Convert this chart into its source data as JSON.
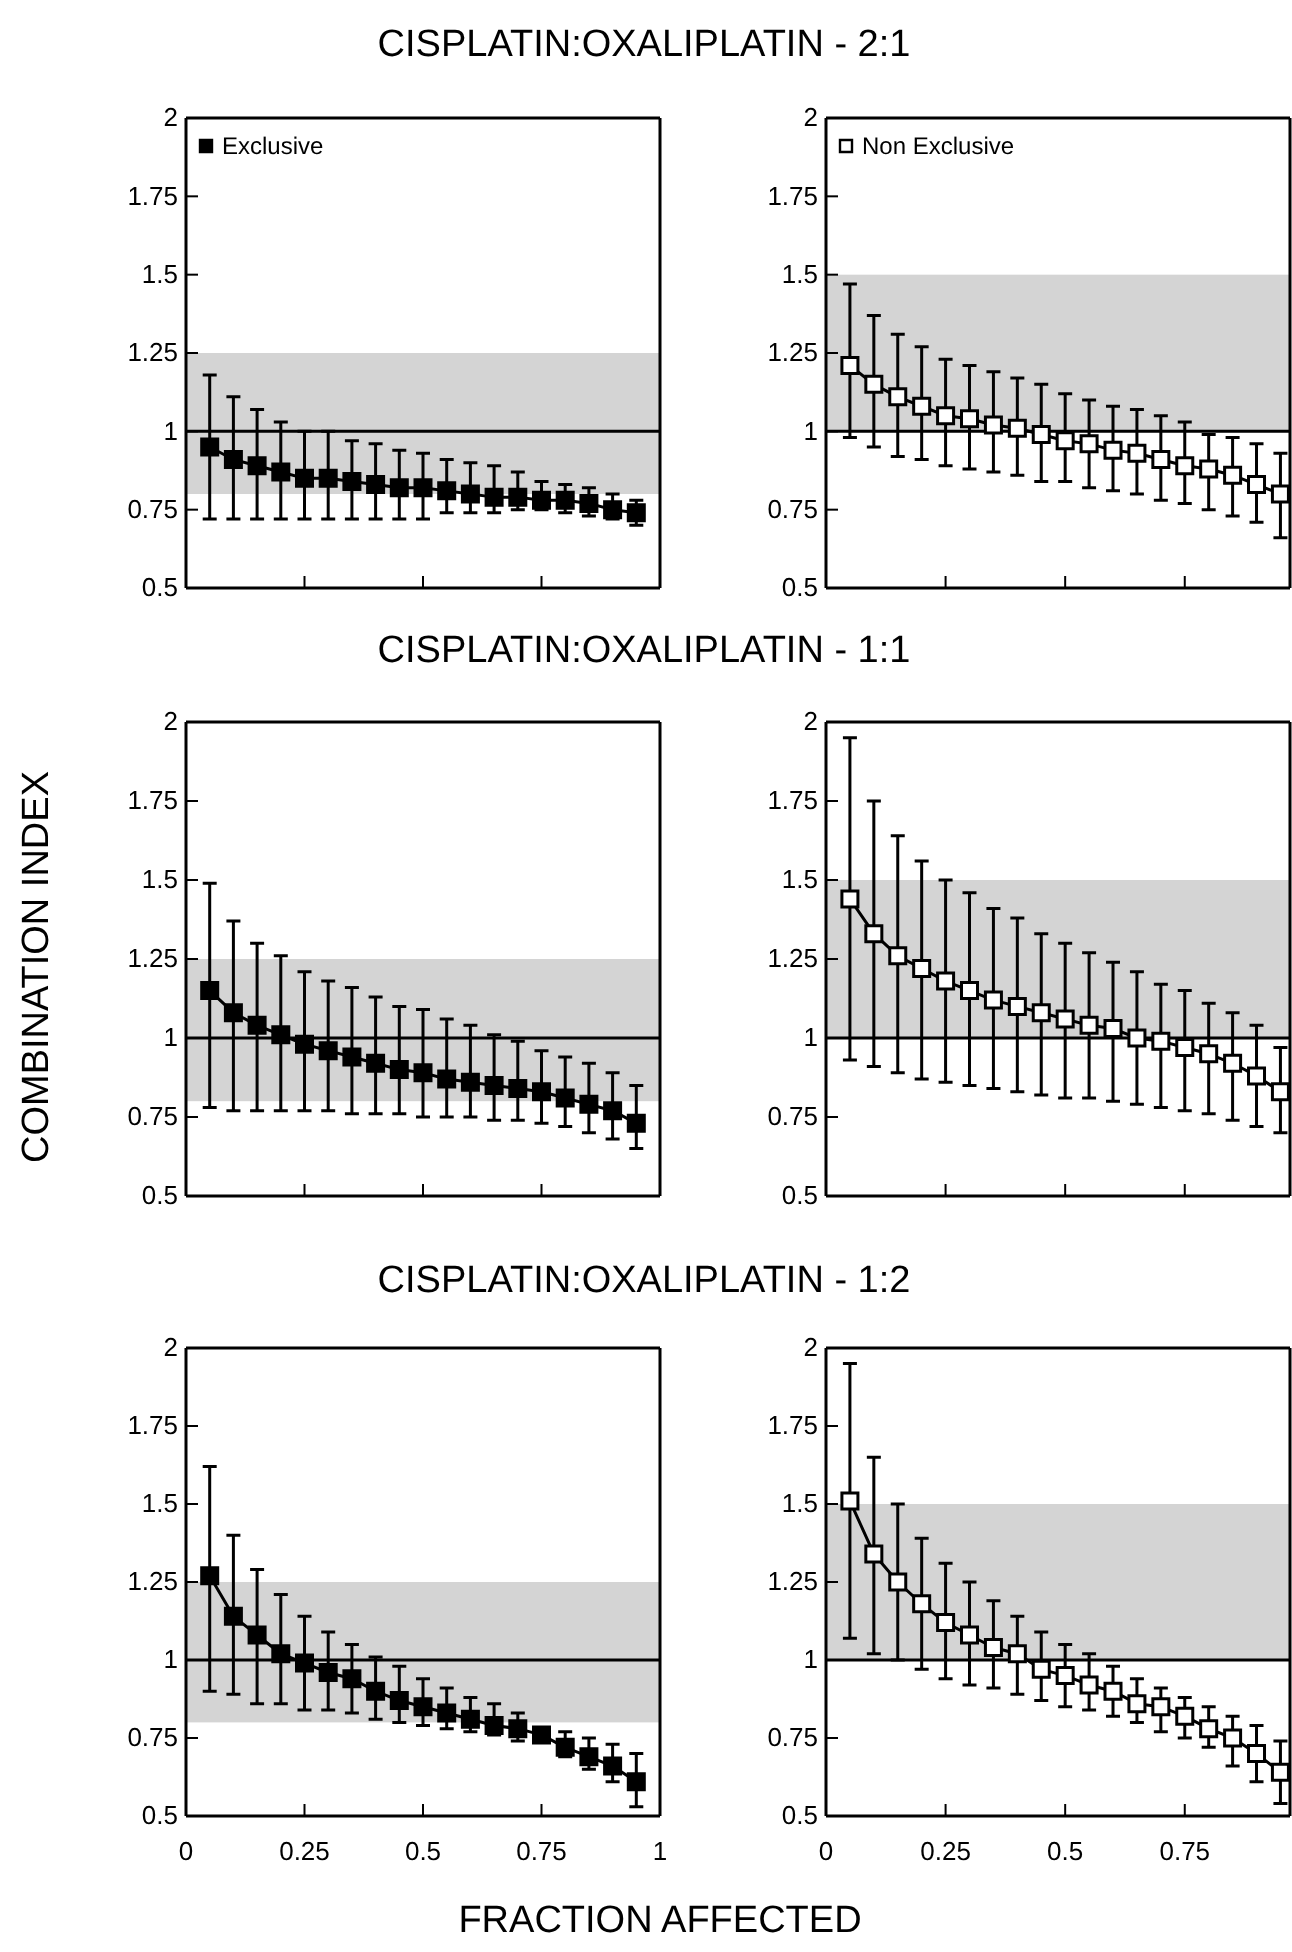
{
  "chart_data": [
    {
      "type": "line",
      "title": "CISPLATIN:OXALIPLATIN - 2:1",
      "x": [
        0.05,
        0.1,
        0.15,
        0.2,
        0.25,
        0.3,
        0.35,
        0.4,
        0.45,
        0.5,
        0.55,
        0.6,
        0.65,
        0.7,
        0.75,
        0.8,
        0.85,
        0.9,
        0.95
      ],
      "xlim": [
        0,
        1
      ],
      "xticks": [
        0,
        0.25,
        0.5,
        0.75,
        1
      ],
      "ylim": [
        0.5,
        2
      ],
      "yticks": [
        0.5,
        0.75,
        1,
        1.25,
        1.5,
        1.75,
        2
      ],
      "tick_labels": "y",
      "marker": "square",
      "legend": "top left",
      "series": [
        {
          "name": "Exclusive",
          "color": "#000000",
          "values": [
            0.95,
            0.91,
            0.89,
            0.87,
            0.85,
            0.85,
            0.84,
            0.83,
            0.82,
            0.82,
            0.81,
            0.8,
            0.79,
            0.79,
            0.78,
            0.78,
            0.77,
            0.75,
            0.74
          ],
          "errors": [
            [
              0.72,
              1.18
            ],
            [
              0.72,
              1.11
            ],
            [
              0.72,
              1.07
            ],
            [
              0.72,
              1.03
            ],
            [
              0.72,
              1.0
            ],
            [
              0.72,
              1.0
            ],
            [
              0.72,
              0.97
            ],
            [
              0.72,
              0.96
            ],
            [
              0.72,
              0.94
            ],
            [
              0.72,
              0.93
            ],
            [
              0.74,
              0.91
            ],
            [
              0.74,
              0.9
            ],
            [
              0.74,
              0.89
            ],
            [
              0.75,
              0.87
            ],
            [
              0.75,
              0.84
            ],
            [
              0.74,
              0.83
            ],
            [
              0.73,
              0.82
            ],
            [
              0.72,
              0.8
            ],
            [
              0.7,
              0.78
            ]
          ]
        }
      ],
      "bands": [
        {
          "axis": "y",
          "from": 0.8,
          "to": 1.25,
          "color": "#d4d4d4"
        }
      ],
      "ref_lines": [
        {
          "axis": "y",
          "value": 1,
          "color": "#000000"
        }
      ]
    },
    {
      "type": "line",
      "x": [
        0.05,
        0.1,
        0.15,
        0.2,
        0.25,
        0.3,
        0.35,
        0.4,
        0.45,
        0.5,
        0.55,
        0.6,
        0.65,
        0.7,
        0.75,
        0.8,
        0.85,
        0.9,
        0.95
      ],
      "xlim": [
        0,
        0.97
      ],
      "xticks": [
        0,
        0.25,
        0.5,
        0.75
      ],
      "ylim": [
        0.5,
        2
      ],
      "yticks": [
        0.5,
        0.75,
        1,
        1.25,
        1.5,
        1.75,
        2
      ],
      "tick_labels": "y",
      "marker": "square",
      "legend": "top left",
      "series": [
        {
          "name": "Non Exclusive",
          "color": "#000000",
          "values": [
            1.21,
            1.15,
            1.11,
            1.08,
            1.05,
            1.04,
            1.02,
            1.01,
            0.99,
            0.97,
            0.96,
            0.94,
            0.93,
            0.91,
            0.89,
            0.88,
            0.86,
            0.83,
            0.8
          ],
          "errors": [
            [
              0.98,
              1.47
            ],
            [
              0.95,
              1.37
            ],
            [
              0.92,
              1.31
            ],
            [
              0.91,
              1.27
            ],
            [
              0.89,
              1.23
            ],
            [
              0.88,
              1.21
            ],
            [
              0.87,
              1.19
            ],
            [
              0.86,
              1.17
            ],
            [
              0.84,
              1.15
            ],
            [
              0.84,
              1.12
            ],
            [
              0.82,
              1.1
            ],
            [
              0.81,
              1.08
            ],
            [
              0.8,
              1.07
            ],
            [
              0.78,
              1.05
            ],
            [
              0.77,
              1.03
            ],
            [
              0.75,
              0.99
            ],
            [
              0.73,
              0.98
            ],
            [
              0.71,
              0.96
            ],
            [
              0.66,
              0.93
            ]
          ]
        }
      ],
      "bands": [
        {
          "axis": "y",
          "from": 1,
          "to": 1.5,
          "color": "#d4d4d4"
        }
      ],
      "ref_lines": [
        {
          "axis": "y",
          "value": 1,
          "color": "#000000"
        }
      ]
    },
    {
      "type": "line",
      "title": "CISPLATIN:OXALIPLATIN - 1:1",
      "ylabel": "COMBINATION INDEX",
      "x": [
        0.05,
        0.1,
        0.15,
        0.2,
        0.25,
        0.3,
        0.35,
        0.4,
        0.45,
        0.5,
        0.55,
        0.6,
        0.65,
        0.7,
        0.75,
        0.8,
        0.85,
        0.9,
        0.95
      ],
      "xlim": [
        0,
        1
      ],
      "xticks": [
        0,
        0.25,
        0.5,
        0.75,
        1
      ],
      "ylim": [
        0.5,
        2
      ],
      "yticks": [
        0.5,
        0.75,
        1,
        1.25,
        1.5,
        1.75,
        2
      ],
      "tick_labels": "y",
      "marker": "square",
      "series": [
        {
          "color": "#000000",
          "values": [
            1.15,
            1.08,
            1.04,
            1.01,
            0.98,
            0.96,
            0.94,
            0.92,
            0.9,
            0.89,
            0.87,
            0.86,
            0.85,
            0.84,
            0.83,
            0.81,
            0.79,
            0.77,
            0.73
          ],
          "errors": [
            [
              0.78,
              1.49
            ],
            [
              0.77,
              1.37
            ],
            [
              0.77,
              1.3
            ],
            [
              0.77,
              1.26
            ],
            [
              0.77,
              1.21
            ],
            [
              0.77,
              1.18
            ],
            [
              0.76,
              1.16
            ],
            [
              0.76,
              1.13
            ],
            [
              0.76,
              1.1
            ],
            [
              0.75,
              1.09
            ],
            [
              0.75,
              1.06
            ],
            [
              0.75,
              1.04
            ],
            [
              0.74,
              1.01
            ],
            [
              0.74,
              0.99
            ],
            [
              0.73,
              0.96
            ],
            [
              0.72,
              0.94
            ],
            [
              0.7,
              0.92
            ],
            [
              0.68,
              0.89
            ],
            [
              0.65,
              0.85
            ]
          ]
        }
      ],
      "bands": [
        {
          "axis": "y",
          "from": 0.8,
          "to": 1.25,
          "color": "#d4d4d4"
        }
      ],
      "ref_lines": [
        {
          "axis": "y",
          "value": 1,
          "color": "#000000"
        }
      ]
    },
    {
      "type": "line",
      "x": [
        0.05,
        0.1,
        0.15,
        0.2,
        0.25,
        0.3,
        0.35,
        0.4,
        0.45,
        0.5,
        0.55,
        0.6,
        0.65,
        0.7,
        0.75,
        0.8,
        0.85,
        0.9,
        0.95
      ],
      "xlim": [
        0,
        0.97
      ],
      "xticks": [
        0,
        0.25,
        0.5,
        0.75
      ],
      "ylim": [
        0.5,
        2
      ],
      "yticks": [
        0.5,
        0.75,
        1,
        1.25,
        1.5,
        1.75,
        2
      ],
      "tick_labels": "y",
      "marker": "square",
      "series": [
        {
          "color": "#000000",
          "values": [
            1.44,
            1.33,
            1.26,
            1.22,
            1.18,
            1.15,
            1.12,
            1.1,
            1.08,
            1.06,
            1.04,
            1.03,
            1.0,
            0.99,
            0.97,
            0.95,
            0.92,
            0.88,
            0.83
          ],
          "errors": [
            [
              0.93,
              1.95
            ],
            [
              0.91,
              1.75
            ],
            [
              0.89,
              1.64
            ],
            [
              0.87,
              1.56
            ],
            [
              0.86,
              1.5
            ],
            [
              0.85,
              1.46
            ],
            [
              0.84,
              1.41
            ],
            [
              0.83,
              1.38
            ],
            [
              0.82,
              1.33
            ],
            [
              0.81,
              1.3
            ],
            [
              0.81,
              1.27
            ],
            [
              0.8,
              1.24
            ],
            [
              0.79,
              1.21
            ],
            [
              0.78,
              1.17
            ],
            [
              0.77,
              1.15
            ],
            [
              0.76,
              1.11
            ],
            [
              0.74,
              1.08
            ],
            [
              0.72,
              1.04
            ],
            [
              0.7,
              0.97
            ]
          ]
        }
      ],
      "bands": [
        {
          "axis": "y",
          "from": 1,
          "to": 1.5,
          "color": "#d4d4d4"
        }
      ],
      "ref_lines": [
        {
          "axis": "y",
          "value": 1,
          "color": "#000000"
        }
      ]
    },
    {
      "type": "line",
      "title": "CISPLATIN:OXALIPLATIN - 1:2",
      "xlabel": "FRACTION AFFECTED",
      "x": [
        0.05,
        0.1,
        0.15,
        0.2,
        0.25,
        0.3,
        0.35,
        0.4,
        0.45,
        0.5,
        0.55,
        0.6,
        0.65,
        0.7,
        0.75,
        0.8,
        0.85,
        0.9,
        0.95
      ],
      "xlim": [
        0,
        1
      ],
      "xticks": [
        0,
        0.25,
        0.5,
        0.75,
        1
      ],
      "ylim": [
        0.5,
        2
      ],
      "yticks": [
        0.5,
        0.75,
        1,
        1.25,
        1.5,
        1.75,
        2
      ],
      "marker": "square",
      "series": [
        {
          "color": "#000000",
          "values": [
            1.27,
            1.14,
            1.08,
            1.02,
            0.99,
            0.96,
            0.94,
            0.9,
            0.87,
            0.85,
            0.83,
            0.81,
            0.79,
            0.78,
            0.76,
            0.72,
            0.69,
            0.66,
            0.61
          ],
          "errors": [
            [
              0.9,
              1.62
            ],
            [
              0.89,
              1.4
            ],
            [
              0.86,
              1.29
            ],
            [
              0.86,
              1.21
            ],
            [
              0.84,
              1.14
            ],
            [
              0.84,
              1.09
            ],
            [
              0.83,
              1.05
            ],
            [
              0.81,
              1.01
            ],
            [
              0.8,
              0.98
            ],
            [
              0.79,
              0.94
            ],
            [
              0.78,
              0.91
            ],
            [
              0.77,
              0.88
            ],
            [
              0.76,
              0.86
            ],
            [
              0.74,
              0.83
            ],
            null,
            [
              0.69,
              0.77
            ],
            [
              0.65,
              0.75
            ],
            [
              0.61,
              0.73
            ],
            [
              0.53,
              0.7
            ]
          ]
        }
      ],
      "bands": [
        {
          "axis": "y",
          "from": 0.8,
          "to": 1.25,
          "color": "#d4d4d4"
        }
      ],
      "ref_lines": [
        {
          "axis": "y",
          "value": 1,
          "color": "#000000"
        }
      ]
    },
    {
      "type": "line",
      "x": [
        0.05,
        0.1,
        0.15,
        0.2,
        0.25,
        0.3,
        0.35,
        0.4,
        0.45,
        0.5,
        0.55,
        0.6,
        0.65,
        0.7,
        0.75,
        0.8,
        0.85,
        0.9,
        0.95
      ],
      "xlim": [
        0,
        0.97
      ],
      "xticks": [
        0,
        0.25,
        0.5,
        0.75
      ],
      "ylim": [
        0.5,
        2
      ],
      "yticks": [
        0.5,
        0.75,
        1,
        1.25,
        1.5,
        1.75,
        2
      ],
      "marker": "square",
      "series": [
        {
          "color": "#000000",
          "values": [
            1.51,
            1.34,
            1.25,
            1.18,
            1.12,
            1.08,
            1.04,
            1.02,
            0.97,
            0.95,
            0.92,
            0.9,
            0.86,
            0.85,
            0.82,
            0.78,
            0.75,
            0.7,
            0.64
          ],
          "errors": [
            [
              1.07,
              1.95
            ],
            [
              1.02,
              1.65
            ],
            [
              1.0,
              1.5
            ],
            [
              0.97,
              1.39
            ],
            [
              0.94,
              1.31
            ],
            [
              0.92,
              1.25
            ],
            [
              0.91,
              1.19
            ],
            [
              0.89,
              1.14
            ],
            [
              0.87,
              1.09
            ],
            [
              0.85,
              1.05
            ],
            [
              0.84,
              1.02
            ],
            [
              0.82,
              0.98
            ],
            [
              0.8,
              0.94
            ],
            [
              0.77,
              0.91
            ],
            [
              0.75,
              0.88
            ],
            [
              0.72,
              0.85
            ],
            [
              0.66,
              0.82
            ],
            [
              0.61,
              0.79
            ],
            [
              0.54,
              0.74
            ]
          ]
        }
      ],
      "bands": [
        {
          "axis": "y",
          "from": 1,
          "to": 1.5,
          "color": "#d4d4d4"
        }
      ],
      "ref_lines": [
        {
          "axis": "y",
          "value": 1,
          "color": "#000000"
        }
      ]
    }
  ]
}
